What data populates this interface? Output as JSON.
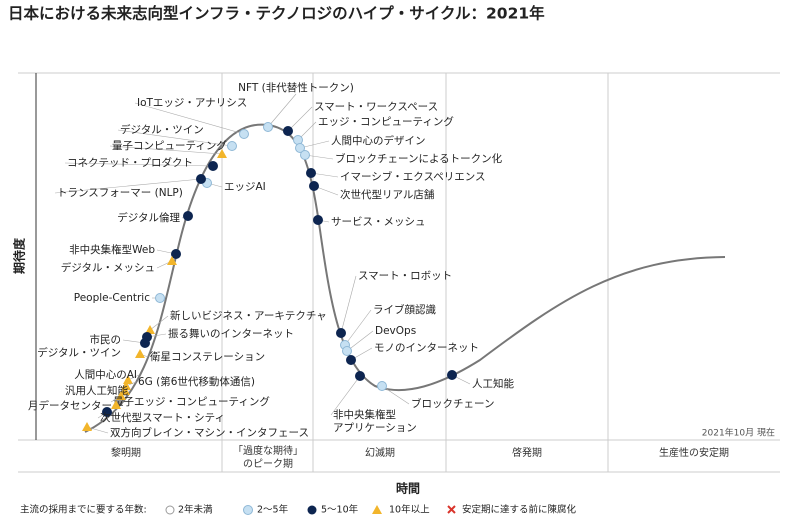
{
  "title": "日本における未来志向型インフラ・テクノロジのハイプ・サイクル：2021年",
  "y_axis": "期待度",
  "x_axis": "時間",
  "note": "2021年10月 現在",
  "phases": [
    "黎明期",
    [
      "「過度な期待」",
      "のピーク期"
    ],
    "幻滅期",
    "啓発期",
    "生産性の安定期"
  ],
  "technologies": [
    "NFT (非代替性トークン)",
    "IoTエッジ・アナリシス",
    "デジタル・ツイン",
    "量子コンピューティング",
    "コネクテッド・プロダクト",
    "エッジAI",
    "トランスフォーマー (NLP)",
    "デジタル倫理",
    "非中央集権型Web",
    "デジタル・メッシュ",
    "People-Centric",
    "新しいビジネス・アーキテクチャ",
    "振る舞いのインターネット",
    [
      "市民の",
      "デジタル・ツイン"
    ],
    "衛星コンステレーション",
    "人間中心のAI",
    "6G (第6世代移動体通信)",
    "汎用人工知能",
    "量子エッジ・コンピューティング",
    "月データセンター",
    "次世代型スマート・シティ",
    "双方向ブレイン・マシン・インタフェース",
    "スマート・ワークスペース",
    "エッジ・コンピューティング",
    "人間中心のデザイン",
    "ブロックチェーンによるトークン化",
    "イマーシブ・エクスペリエンス",
    "次世代型リアル店舗",
    "サービス・メッシュ",
    "スマート・ロボット",
    "ライブ顔認識",
    "DevOps",
    "モノのインターネット",
    [
      "非中央集権型",
      "アプリケーション"
    ],
    "ブロックチェーン",
    "人工知能"
  ],
  "legend": {
    "title": "主流の採用までに要する年数:",
    "items": [
      "2年未満",
      "2～5年",
      "5～10年",
      "10年以上",
      "安定期に達する前に陳腐化"
    ]
  }
}
